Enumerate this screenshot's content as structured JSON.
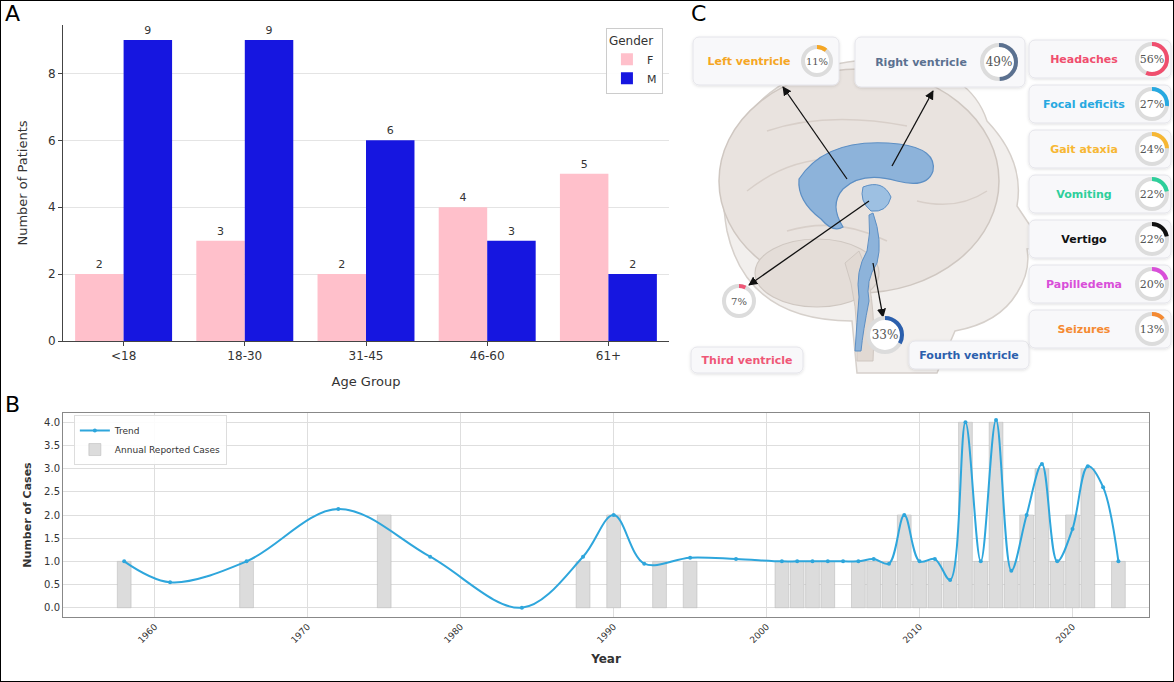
{
  "chart_data": [
    {
      "panel": "A",
      "type": "bar",
      "categories": [
        "<18",
        "18-30",
        "31-45",
        "46-60",
        "61+"
      ],
      "series": [
        {
          "name": "F",
          "color": "#ffc0cb",
          "values": [
            2,
            3,
            2,
            4,
            5
          ]
        },
        {
          "name": "M",
          "color": "#1616e0",
          "values": [
            9,
            9,
            6,
            3,
            2
          ]
        }
      ],
      "x_label": "Age Group",
      "y_label": "Number of Patients",
      "legend_title": "Gender",
      "legend": "top-right",
      "ylim": [
        0,
        9.45
      ],
      "yticks": [
        0,
        2,
        4,
        6,
        8
      ],
      "grid": true,
      "data_labels": true
    },
    {
      "panel": "B",
      "type": "bar",
      "x_label": "Year",
      "y_label": "Number of Cases",
      "legend": "top-left",
      "grid": true,
      "xlim": [
        1954,
        2025
      ],
      "xticks": [
        1960,
        1970,
        1980,
        1990,
        2000,
        2010,
        2020
      ],
      "ylim": [
        -0.2,
        4.2
      ],
      "yticks": [
        {
          "value": 0,
          "label": "0.0"
        },
        {
          "value": 0.5,
          "label": "0.5"
        },
        {
          "value": 1,
          "label": "1.0"
        },
        {
          "value": 1.5,
          "label": "1.5"
        },
        {
          "value": 2,
          "label": "2.0"
        },
        {
          "value": 2.5,
          "label": "2.5"
        },
        {
          "value": 3,
          "label": "3.0"
        },
        {
          "value": 3.5,
          "label": "3.5"
        },
        {
          "value": 4,
          "label": "4.0"
        }
      ],
      "series": [
        {
          "name": "Trend",
          "type": "line",
          "color": "#2ea6dc",
          "marker": "circle",
          "line_style": "spline",
          "x": [
            1958,
            1961,
            1966,
            1972,
            1978,
            1984,
            1988,
            1990,
            1992,
            1995,
            1998,
            2001,
            2002,
            2003,
            2004,
            2005,
            2006,
            2007,
            2008,
            2009,
            2010,
            2011,
            2012,
            2013,
            2014,
            2015,
            2016,
            2017,
            2018,
            2019,
            2020,
            2021,
            2022,
            2023
          ],
          "values": [
            1.0,
            0.55,
            1.0,
            2.13,
            1.1,
            0.0,
            1.1,
            2.0,
            0.95,
            1.08,
            1.05,
            1.0,
            1.0,
            1.0,
            1.0,
            1.0,
            1.0,
            1.05,
            0.95,
            2.0,
            1.0,
            1.05,
            0.6,
            4.0,
            1.0,
            4.05,
            0.8,
            2.0,
            3.1,
            1.0,
            1.7,
            3.05,
            2.6,
            1.0
          ]
        },
        {
          "name": "Annual Reported Cases",
          "type": "bar",
          "color": "#dcdcdc",
          "x": [
            1958,
            1966,
            1975,
            1988,
            1990,
            1993,
            1995,
            2001,
            2002,
            2003,
            2004,
            2006,
            2007,
            2008,
            2009,
            2010,
            2011,
            2012,
            2013,
            2014,
            2015,
            2016,
            2017,
            2018,
            2019,
            2020,
            2021,
            2023
          ],
          "values": [
            1,
            1,
            2,
            1,
            2,
            1,
            1,
            1,
            1,
            1,
            1,
            1,
            1,
            1,
            2,
            1,
            1,
            1,
            4,
            1,
            4,
            1,
            2,
            3,
            1,
            2,
            3,
            1
          ]
        }
      ]
    },
    {
      "panel": "C",
      "type": "ring",
      "series": [
        {
          "categories": [
            "Left ventricle",
            "Right ventricle",
            "Third ventricle",
            "Fourth ventricle"
          ],
          "values": [
            11,
            49,
            7,
            33
          ],
          "value_labels": [
            "11%",
            "49%",
            "7%",
            "33%"
          ],
          "colors": [
            "#f5a623",
            "#5b7190",
            "#ef5777",
            "#2b5fad"
          ]
        },
        {
          "categories": [
            "Headaches",
            "Focal deficits",
            "Gait ataxia",
            "Vomiting",
            "Vertigo",
            "Papilledema",
            "Seizures"
          ],
          "values": [
            56,
            27,
            24,
            22,
            22,
            20,
            13
          ],
          "value_labels": [
            "56%",
            "27%",
            "24%",
            "22%",
            "22%",
            "20%",
            "13%"
          ],
          "colors": [
            "#f04e6e",
            "#27a9e1",
            "#f7b733",
            "#2ecf9b",
            "#111111",
            "#d94fd9",
            "#f58a32"
          ]
        }
      ]
    }
  ]
}
